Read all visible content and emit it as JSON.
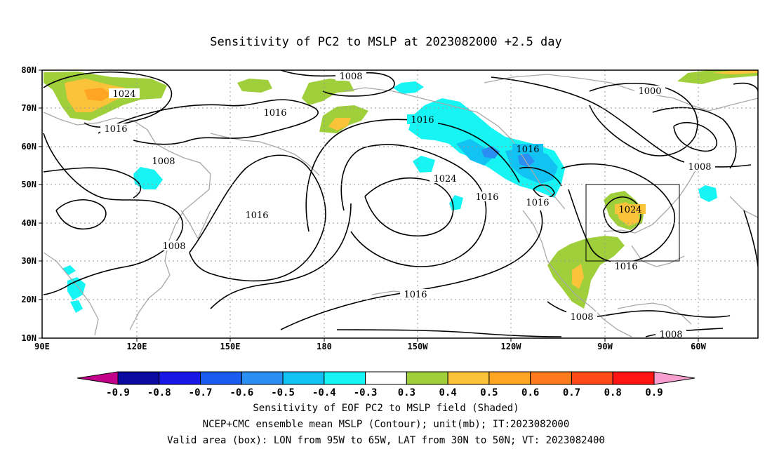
{
  "title": "Sensitivity of PC2 to MSLP at 2023082000 +2.5 day",
  "map": {
    "lon_ticks": [
      "90E",
      "120E",
      "150E",
      "180",
      "150W",
      "120W",
      "90W",
      "60W"
    ],
    "lat_ticks": [
      "80N",
      "70N",
      "60N",
      "50N",
      "40N",
      "30N",
      "20N",
      "10N"
    ],
    "contour_labels": [
      "1008",
      "1024",
      "1016",
      "1016",
      "1008",
      "1016",
      "1008",
      "1016",
      "1024",
      "1016",
      "1016",
      "1016",
      "1000",
      "1008",
      "1024",
      "1016",
      "1016",
      "1008",
      "1008"
    ],
    "box": {
      "lon_from": "95W",
      "lon_to": "65W",
      "lat_from": "30N",
      "lat_to": "50N"
    }
  },
  "colorbar": {
    "labels": [
      "-0.9",
      "-0.8",
      "-0.7",
      "-0.6",
      "-0.5",
      "-0.4",
      "-0.3",
      "0.3",
      "0.4",
      "0.5",
      "0.6",
      "0.7",
      "0.8",
      "0.9"
    ],
    "colors": [
      "#c2008a",
      "#0a0a9e",
      "#1818e6",
      "#1a5cf0",
      "#2a8ef2",
      "#12c2f2",
      "#16f4f4",
      "#ffffff",
      "#9fcf3a",
      "#fbc33a",
      "#ffa423",
      "#ff7a1c",
      "#ff4a18",
      "#ff1414",
      "#f7a0d0"
    ]
  },
  "captions": [
    "Sensitivity of EOF PC2 to MSLP field (Shaded)",
    "NCEP+CMC ensemble mean MSLP (Contour); unit(mb); IT:2023082000",
    "Valid area (box): LON from 95W to 65W, LAT from 30N to 50N; VT: 2023082400"
  ]
}
